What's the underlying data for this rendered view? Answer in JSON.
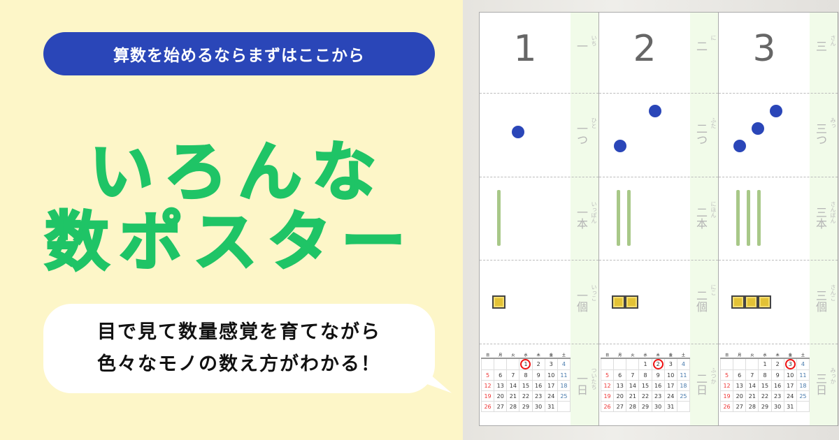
{
  "header": {
    "tagline": "算数を始めるならまずはここから",
    "title_line1": "いろんな",
    "title_line2": "数ポスター"
  },
  "bubble": {
    "line1": "目で見て数量感覚を育てながら",
    "line2": "色々なモノの数え方がわかる！"
  },
  "colors": {
    "accent_blue": "#2a46b8",
    "title_green": "#1fc466",
    "background": "#fdf6c8"
  },
  "posters": [
    {
      "numeral": "1",
      "count": 1,
      "rows": [
        {
          "kanji": "一",
          "furigana": "いち"
        },
        {
          "kanji": "一つ",
          "furigana": "ひと"
        },
        {
          "kanji": "一本",
          "furigana": "いっぽん"
        },
        {
          "kanji": "一個",
          "furigana": "いっこ"
        },
        {
          "kanji": "一日",
          "furigana": "ついたち"
        }
      ]
    },
    {
      "numeral": "2",
      "count": 2,
      "rows": [
        {
          "kanji": "二",
          "furigana": "に"
        },
        {
          "kanji": "二つ",
          "furigana": "ふた"
        },
        {
          "kanji": "二本",
          "furigana": "にほん"
        },
        {
          "kanji": "二個",
          "furigana": "にこ"
        },
        {
          "kanji": "二日",
          "furigana": "ふつか"
        }
      ]
    },
    {
      "numeral": "3",
      "count": 3,
      "rows": [
        {
          "kanji": "三",
          "furigana": "さん"
        },
        {
          "kanji": "三つ",
          "furigana": "みっ"
        },
        {
          "kanji": "三本",
          "furigana": "さんぼん"
        },
        {
          "kanji": "三個",
          "furigana": "さんこ"
        },
        {
          "kanji": "三日",
          "furigana": "みっか"
        }
      ]
    }
  ],
  "calendar": {
    "weekdays": [
      "日",
      "月",
      "火",
      "水",
      "木",
      "金",
      "土"
    ],
    "first_weekday_index": 3,
    "days": 31
  }
}
